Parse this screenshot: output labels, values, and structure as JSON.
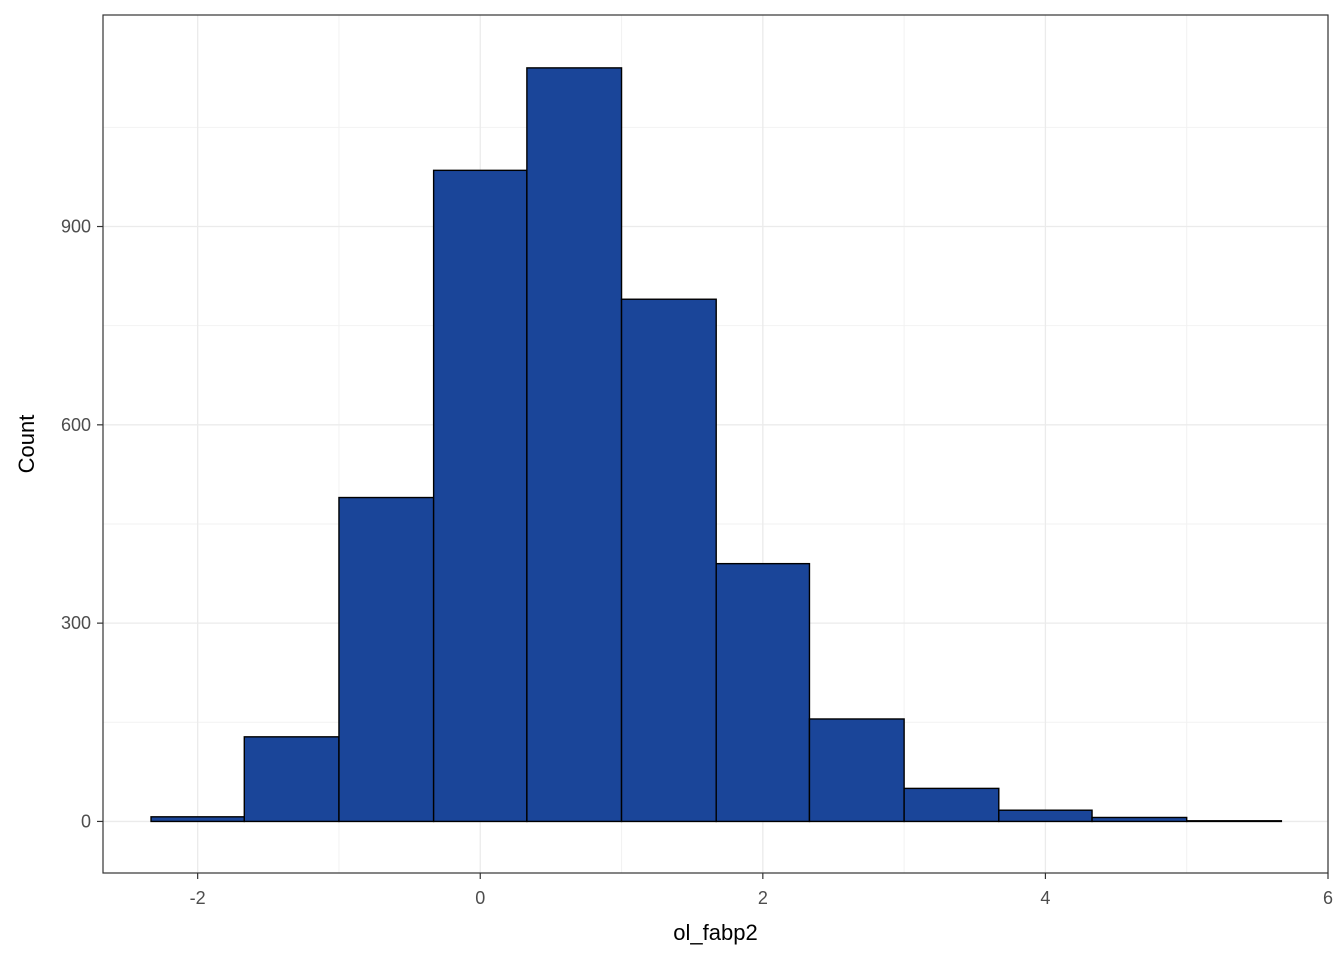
{
  "chart_data": {
    "type": "bar",
    "histogram": true,
    "title": "",
    "xlabel": "ol_fabp2",
    "ylabel": "Count",
    "xlim": [
      -2.67,
      6.0
    ],
    "ylim": [
      -78,
      1220
    ],
    "x_ticks": [
      -2,
      0,
      2,
      4,
      6
    ],
    "y_ticks": [
      0,
      300,
      600,
      900
    ],
    "x_tick_labels": [
      "-2",
      "0",
      "2",
      "4",
      "6"
    ],
    "y_tick_labels": [
      "0",
      "300",
      "600",
      "900"
    ],
    "grid": true,
    "bins": [
      {
        "x0": -2.33,
        "x1": -1.67,
        "count": 7
      },
      {
        "x0": -1.67,
        "x1": -1.0,
        "count": 128
      },
      {
        "x0": -1.0,
        "x1": -0.33,
        "count": 490
      },
      {
        "x0": -0.33,
        "x1": 0.33,
        "count": 985
      },
      {
        "x0": 0.33,
        "x1": 1.0,
        "count": 1140
      },
      {
        "x0": 1.0,
        "x1": 1.67,
        "count": 790
      },
      {
        "x0": 1.67,
        "x1": 2.33,
        "count": 390
      },
      {
        "x0": 2.33,
        "x1": 3.0,
        "count": 155
      },
      {
        "x0": 3.0,
        "x1": 3.67,
        "count": 50
      },
      {
        "x0": 3.67,
        "x1": 4.33,
        "count": 17
      },
      {
        "x0": 4.33,
        "x1": 5.0,
        "count": 6
      },
      {
        "x0": 5.0,
        "x1": 5.67,
        "count": 1
      }
    ],
    "colors": {
      "bar_fill": "#1a4599",
      "bar_stroke": "#000000",
      "grid_major": "#ebebeb",
      "grid_minor": "#f2f2f2",
      "panel_border": "#333333",
      "tick_text": "#4d4d4d"
    }
  }
}
